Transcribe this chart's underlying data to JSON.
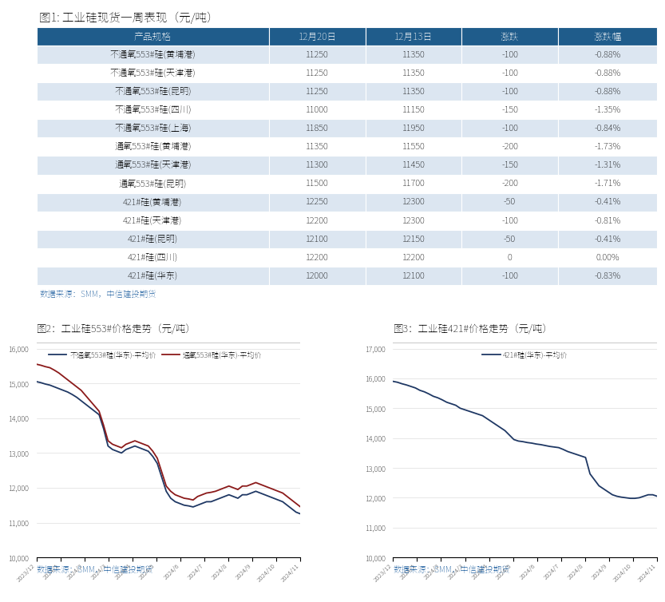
{
  "title": "图1: 工业硅现货一周表现（元/吨）",
  "table_headers": [
    "产品规格",
    "12月20日",
    "12月13日",
    "涨跌",
    "涨跌幅"
  ],
  "table_rows": [
    [
      "不通氧553#硅(黄埔港)",
      "11250",
      "11350",
      "-100",
      "-0.88%"
    ],
    [
      "不通氧553#硅(天津港)",
      "11250",
      "11350",
      "-100",
      "-0.88%"
    ],
    [
      "不通氧553#硅(昆明)",
      "11250",
      "11350",
      "-100",
      "-0.88%"
    ],
    [
      "不通氧553#硅(四川)",
      "11000",
      "11150",
      "-150",
      "-1.35%"
    ],
    [
      "不通氧553#硅(上海)",
      "11850",
      "11950",
      "-100",
      "-0.84%"
    ],
    [
      "通氧553#硅(黄埔港)",
      "11350",
      "11550",
      "-200",
      "-1.73%"
    ],
    [
      "通氧553#硅(天津港)",
      "11300",
      "11450",
      "-150",
      "-1.31%"
    ],
    [
      "通氧553#硅(昆明)",
      "11500",
      "11700",
      "-200",
      "-1.71%"
    ],
    [
      "421#硅(黄埔港)",
      "12250",
      "12300",
      "-50",
      "-0.41%"
    ],
    [
      "421#硅(天津港)",
      "12200",
      "12300",
      "-100",
      "-0.81%"
    ],
    [
      "421#硅(昆明)",
      "12100",
      "12150",
      "-50",
      "-0.41%"
    ],
    [
      "421#硅(四川)",
      "12200",
      "12200",
      "0",
      "0.00%"
    ],
    [
      "421#硅(华东)",
      "12000",
      "12100",
      "-100",
      "-0.83%"
    ]
  ],
  "data_source_table": "数据来源：SMM，中信建投期货",
  "chart2_title": "图2：工业硅553#价格走势（元/吨）",
  "chart3_title": "图3：工业硅421#价格走势（元/吨）",
  "chart2_legend1": "不通氧553#硅(华东)-平均价",
  "chart2_legend2": "通氧553#硅(华东)-平均价",
  "chart3_legend": "421#硅(华东)-平均价",
  "data_source_charts": "数据来源：SMM，中信建投期货",
  "header_bg": "#1f5c8b",
  "header_text": "#ffffff",
  "alt_row_bg": "#dce6f1",
  "normal_row_bg": "#ffffff",
  "table_text_color": "#000000",
  "line1_color": "#1f3864",
  "line2_color": "#8b1a1a",
  "line3_color": "#1f3864",
  "chart2_x_labels": [
    "2023/12",
    "2024/1",
    "2024/2",
    "2024/3",
    "2024/4",
    "2024/5",
    "2024/6",
    "2024/7",
    "2024/8",
    "2024/9",
    "2024/10",
    "2024/11"
  ],
  "chart3_x_labels": [
    "2023/12",
    "2024/1",
    "2024/2",
    "2024/3",
    "2024/4",
    "2024/5",
    "2024/6",
    "2024/7",
    "2024/8",
    "2024/9",
    "2024/10",
    "2024/11"
  ],
  "chart2_ylim": [
    10000,
    16000
  ],
  "chart3_ylim": [
    10000,
    17000
  ],
  "chart2_yticks": [
    10000,
    11000,
    12000,
    13000,
    14000,
    15000,
    16000
  ],
  "chart3_yticks": [
    10000,
    11000,
    12000,
    13000,
    14000,
    15000,
    16000,
    17000
  ],
  "line1_data": [
    15050,
    15020,
    14980,
    14950,
    14900,
    14850,
    14800,
    14750,
    14680,
    14600,
    14500,
    14400,
    14300,
    14200,
    14100,
    13700,
    13200,
    13100,
    13050,
    13000,
    13100,
    13150,
    13200,
    13150,
    13100,
    13050,
    12900,
    12700,
    12300,
    11900,
    11700,
    11600,
    11550,
    11500,
    11480,
    11450,
    11500,
    11550,
    11600,
    11600,
    11650,
    11700,
    11750,
    11800,
    11750,
    11700,
    11800,
    11800,
    11850,
    11900,
    11850,
    11800,
    11750,
    11700,
    11650,
    11600,
    11500,
    11400,
    11300,
    11250
  ],
  "line2_data": [
    15550,
    15520,
    15480,
    15450,
    15380,
    15300,
    15200,
    15100,
    15000,
    14900,
    14800,
    14650,
    14500,
    14350,
    14200,
    13800,
    13350,
    13250,
    13200,
    13150,
    13250,
    13300,
    13350,
    13300,
    13250,
    13200,
    13050,
    12850,
    12450,
    12050,
    11900,
    11800,
    11750,
    11700,
    11680,
    11650,
    11750,
    11800,
    11850,
    11870,
    11900,
    11950,
    12000,
    12050,
    12000,
    11950,
    12050,
    12050,
    12100,
    12150,
    12100,
    12050,
    12000,
    11950,
    11900,
    11850,
    11750,
    11650,
    11550,
    11450
  ],
  "line3_data": [
    15900,
    15870,
    15820,
    15780,
    15730,
    15680,
    15600,
    15550,
    15480,
    15400,
    15350,
    15280,
    15200,
    15150,
    15100,
    15000,
    14950,
    14900,
    14850,
    14800,
    14750,
    14650,
    14550,
    14450,
    14350,
    14250,
    14100,
    13950,
    13900,
    13880,
    13850,
    13830,
    13800,
    13780,
    13750,
    13720,
    13700,
    13680,
    13620,
    13550,
    13500,
    13450,
    13400,
    13350,
    12800,
    12600,
    12400,
    12300,
    12200,
    12100,
    12050,
    12020,
    12000,
    11980,
    11980,
    12000,
    12050,
    12100,
    12100,
    12050
  ]
}
